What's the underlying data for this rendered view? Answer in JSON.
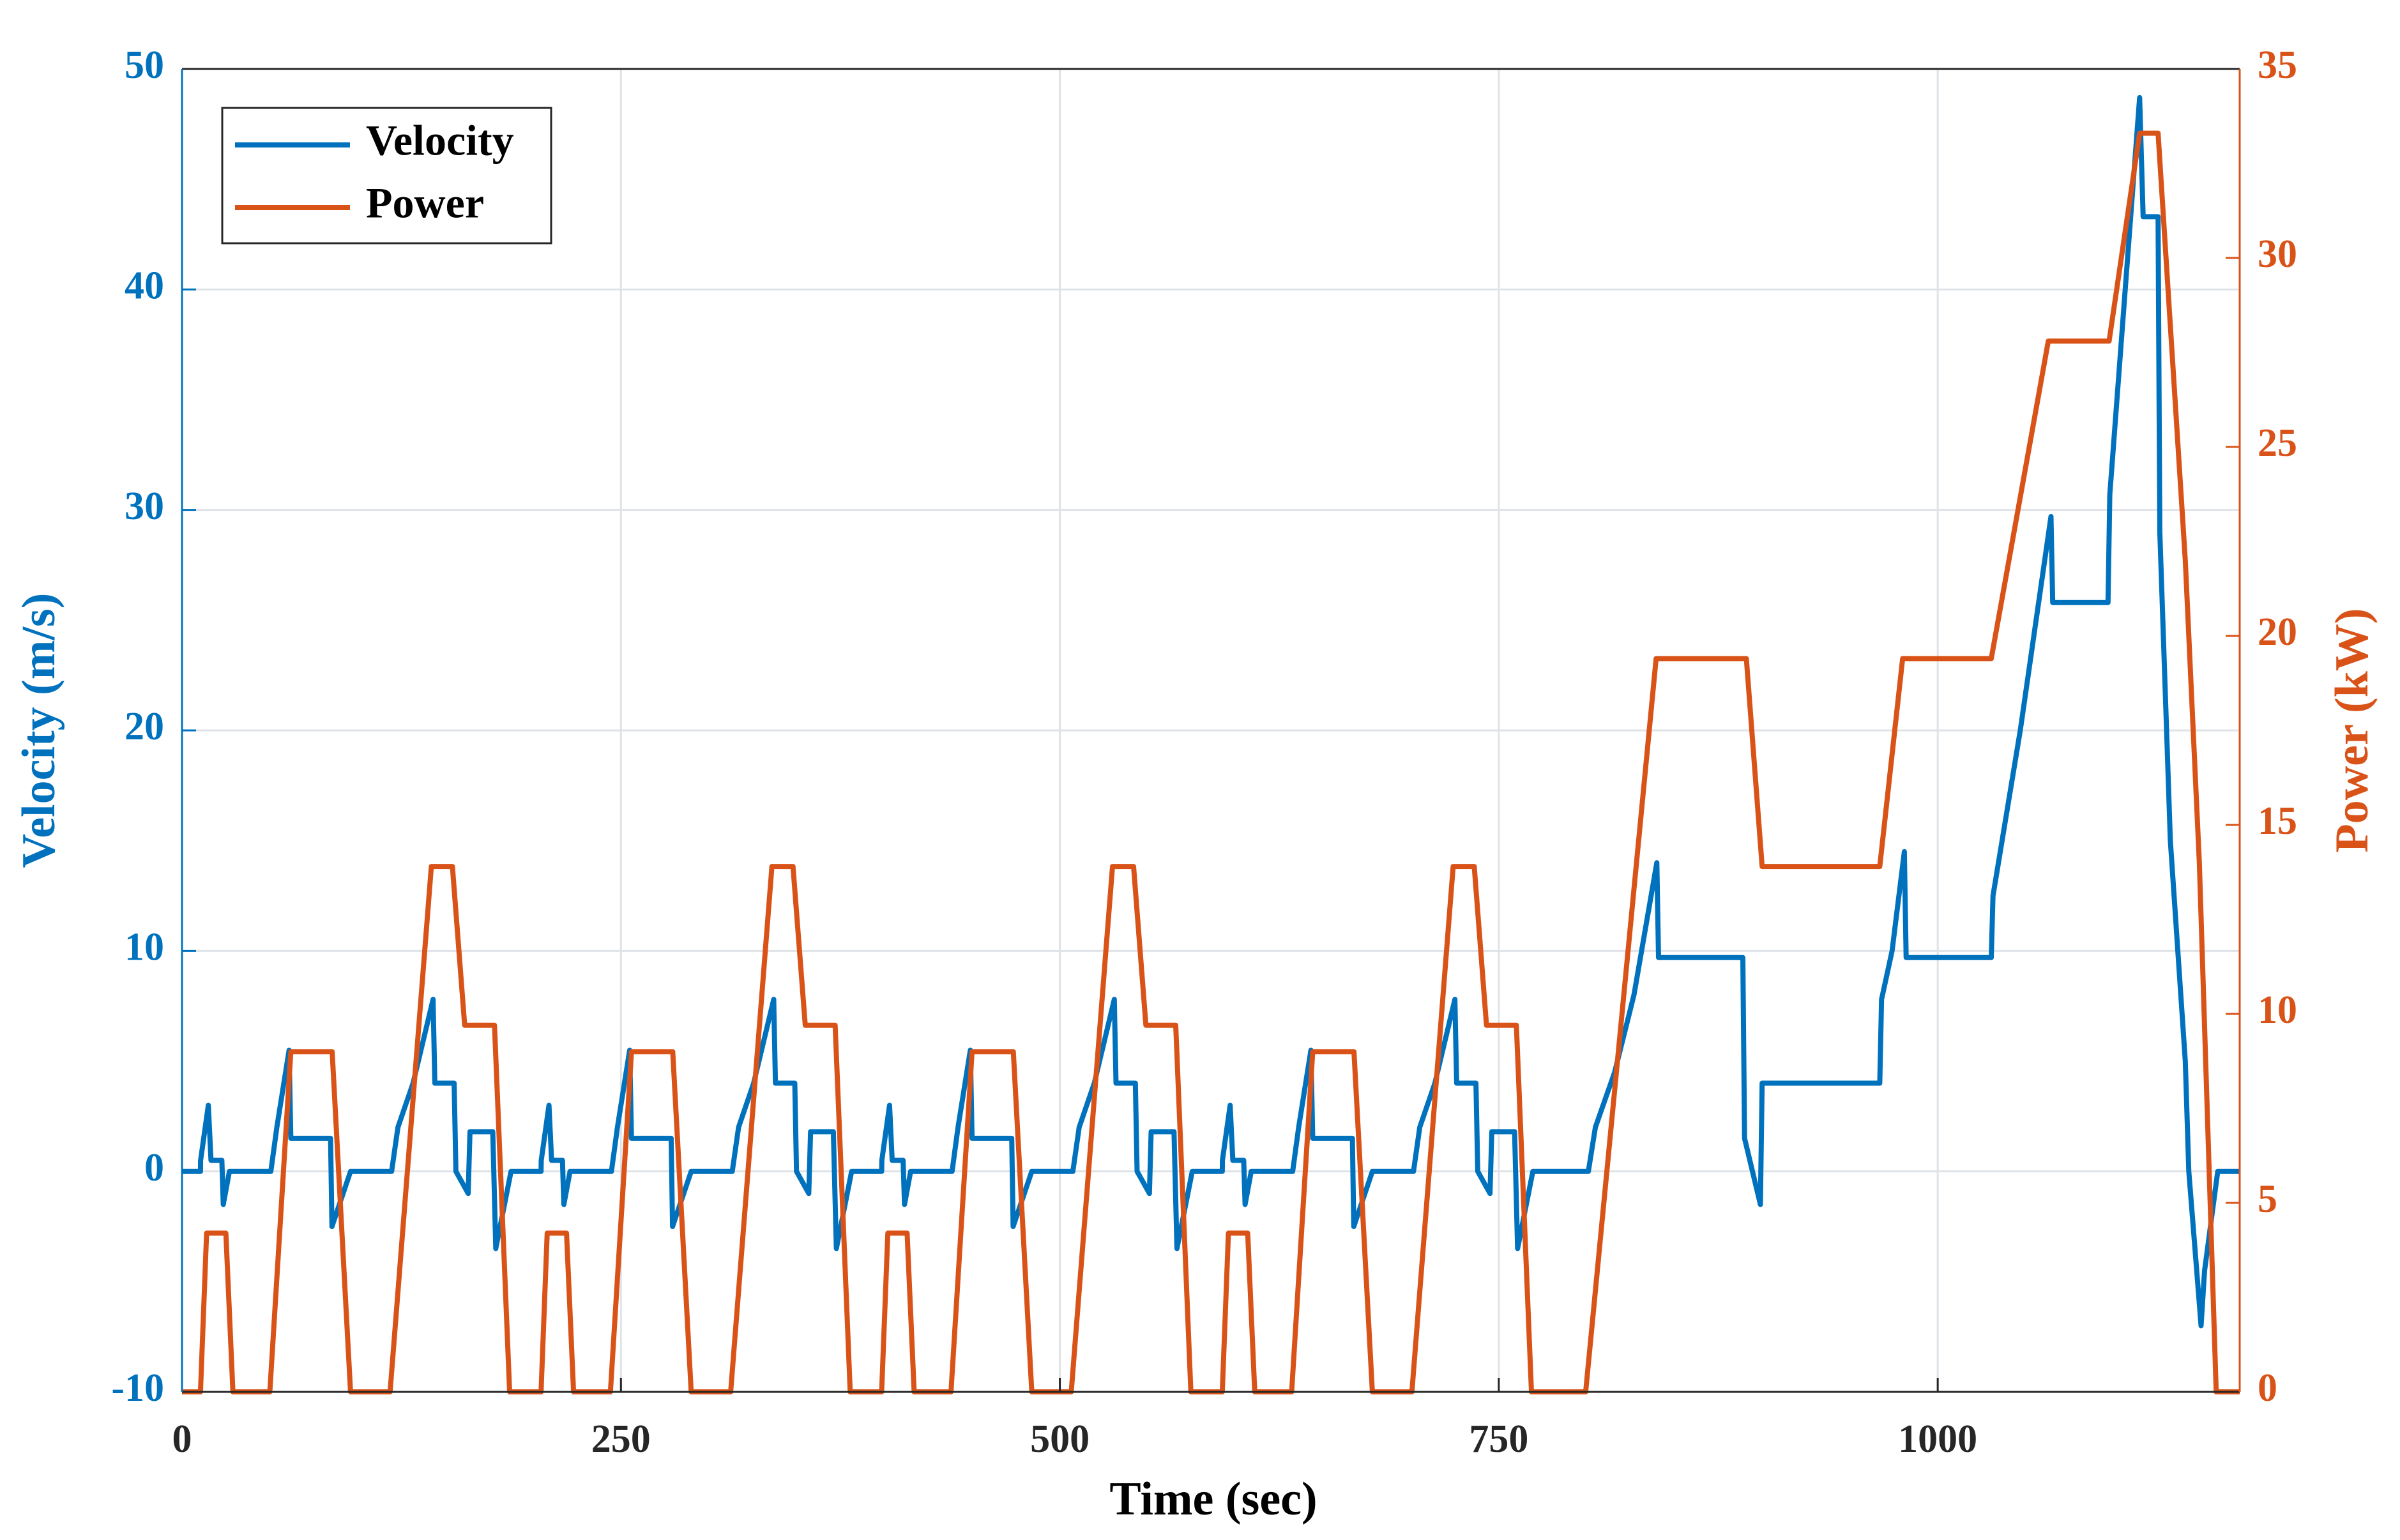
{
  "chart_data": {
    "type": "line",
    "xlabel": "Time (sec)",
    "ylabel": "Velocity (m/s)",
    "y2label": "Power (kW)",
    "xlim": [
      0,
      1172
    ],
    "xticks": [
      0,
      250,
      500,
      750,
      1000
    ],
    "ylim": [
      -10,
      50
    ],
    "yticks": [
      -10,
      0,
      10,
      20,
      30,
      40,
      50
    ],
    "y2lim": [
      0,
      35
    ],
    "y2ticks": [
      0,
      5,
      10,
      15,
      20,
      25,
      30,
      35
    ],
    "grid": true,
    "legend": "upper left",
    "series": [
      {
        "name": "Velocity",
        "color": "#0072BD",
        "axis": "y",
        "x": [
          0,
          10.5,
          10.6,
          15,
          16.5,
          22.7,
          23.5,
          27,
          50.6,
          54,
          61,
          62,
          84.6,
          85.4,
          96,
          119.4,
          123,
          131.6,
          143,
          144,
          155,
          156,
          163,
          164,
          177,
          178.7,
          187.4,
          204.5,
          204.6,
          209,
          210.5,
          216.7,
          217.5,
          221,
          244.6,
          248,
          255,
          256,
          278.6,
          279.4,
          290,
          313.4,
          317,
          325.6,
          337,
          338,
          349,
          350,
          357,
          358,
          371,
          372.7,
          381.4,
          398.5,
          398.6,
          403,
          404.5,
          410.7,
          411.5,
          415,
          438.6,
          442,
          449,
          450,
          472.6,
          473.4,
          484,
          507.4,
          511,
          519.6,
          531,
          532,
          543,
          544,
          551,
          552,
          565,
          566.7,
          575.4,
          592.5,
          592.6,
          597,
          598.5,
          604.7,
          605.5,
          609,
          632.6,
          636,
          643,
          644,
          666.6,
          667.4,
          678,
          701.4,
          705,
          713.6,
          725,
          726,
          737,
          738,
          745,
          746,
          759,
          760.7,
          769.4,
          801,
          805,
          816,
          827,
          840,
          841,
          889,
          890,
          899,
          900,
          967,
          968,
          974,
          981,
          982,
          1030.5,
          1031.5,
          1047,
          1064.5,
          1065.5,
          1097,
          1098,
          1115,
          1117,
          1125.5,
          1126.5,
          1132.5,
          1141,
          1143,
          1147,
          1150,
          1152,
          1159.5,
          1172
        ],
        "values": [
          0,
          0,
          0.5,
          3,
          0.5,
          0.5,
          -1.5,
          0,
          0,
          2,
          5.5,
          1.5,
          1.5,
          -2.5,
          0,
          0,
          2,
          4,
          7.8,
          4,
          4,
          0,
          -1,
          1.8,
          1.8,
          -3.5,
          0,
          0,
          0.5,
          3,
          0.5,
          0.5,
          -1.5,
          0,
          0,
          2,
          5.5,
          1.5,
          1.5,
          -2.5,
          0,
          0,
          2,
          4,
          7.8,
          4,
          4,
          0,
          -1,
          1.8,
          1.8,
          -3.5,
          0,
          0,
          0.5,
          3,
          0.5,
          0.5,
          -1.5,
          0,
          0,
          2,
          5.5,
          1.5,
          1.5,
          -2.5,
          0,
          0,
          2,
          4,
          7.8,
          4,
          4,
          0,
          -1,
          1.8,
          1.8,
          -3.5,
          0,
          0,
          0.5,
          3,
          0.5,
          0.5,
          -1.5,
          0,
          0,
          2,
          5.5,
          1.5,
          1.5,
          -2.5,
          0,
          0,
          2,
          4,
          7.8,
          4,
          4,
          0,
          -1,
          1.8,
          1.8,
          -3.5,
          0,
          0,
          2,
          4.5,
          8,
          14,
          9.7,
          9.7,
          1.5,
          -1.5,
          4,
          4,
          7.8,
          10,
          14.5,
          9.7,
          9.7,
          12.5,
          20,
          29.7,
          25.8,
          25.8,
          30.7,
          48.7,
          43.3,
          43.3,
          29,
          15,
          5,
          0,
          -4,
          -7,
          -4.5,
          0,
          0
        ]
      },
      {
        "name": "Power",
        "color": "#D95319",
        "axis": "y2",
        "x": [
          0,
          10.5,
          14,
          25,
          29,
          50,
          62,
          85.5,
          96,
          118.5,
          142,
          154,
          161,
          178,
          186.6,
          204.5,
          208,
          219,
          223,
          244,
          256,
          279.5,
          290,
          312.5,
          336,
          348,
          355,
          372,
          380.6,
          398.5,
          402,
          413,
          417,
          438,
          450,
          473.5,
          484,
          506.5,
          530,
          542,
          549,
          566,
          574.6,
          592.5,
          596,
          607,
          611,
          632,
          644,
          667.5,
          678,
          700.5,
          724,
          736,
          743,
          760,
          768.6,
          799.5,
          839.6,
          891,
          900,
          967,
          980,
          1030.5,
          1063,
          1097.6,
          1115,
          1125.5,
          1141,
          1149,
          1158.6,
          1172
        ],
        "values": [
          0,
          0,
          4.2,
          4.2,
          0,
          0,
          9,
          9,
          0,
          0,
          13.9,
          13.9,
          9.7,
          9.7,
          0,
          0,
          4.2,
          4.2,
          0,
          0,
          9,
          9,
          0,
          0,
          13.9,
          13.9,
          9.7,
          9.7,
          0,
          0,
          4.2,
          4.2,
          0,
          0,
          9,
          9,
          0,
          0,
          13.9,
          13.9,
          9.7,
          9.7,
          0,
          0,
          4.2,
          4.2,
          0,
          0,
          9,
          9,
          0,
          0,
          13.9,
          13.9,
          9.7,
          9.7,
          0,
          0,
          19.4,
          19.4,
          13.9,
          13.9,
          19.4,
          19.4,
          27.8,
          27.8,
          33.3,
          33.3,
          22,
          14,
          0,
          0
        ]
      }
    ]
  }
}
